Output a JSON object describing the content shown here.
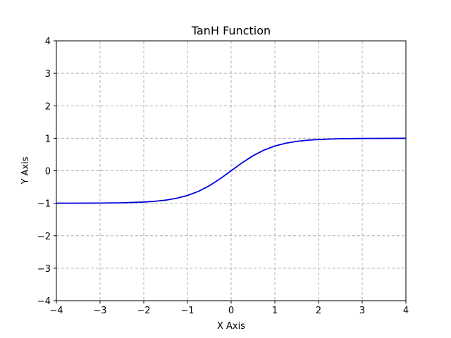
{
  "chart_data": {
    "type": "line",
    "title": "TanH Function",
    "xlabel": "X Axis",
    "ylabel": "Y Axis",
    "xlim": [
      -4,
      4
    ],
    "ylim": [
      -4,
      4
    ],
    "xticks": [
      -4,
      -3,
      -2,
      -1,
      0,
      1,
      2,
      3,
      4
    ],
    "yticks": [
      -4,
      -3,
      -2,
      -1,
      0,
      1,
      2,
      3,
      4
    ],
    "xtick_labels": [
      "−4",
      "−3",
      "−2",
      "−1",
      "0",
      "1",
      "2",
      "3",
      "4"
    ],
    "ytick_labels": [
      "−4",
      "−3",
      "−2",
      "−1",
      "0",
      "1",
      "2",
      "3",
      "4"
    ],
    "grid": true,
    "grid_style": "dashed",
    "series": [
      {
        "color": "#0000dd",
        "x": [
          -4.0,
          -3.5,
          -3.0,
          -2.5,
          -2.0,
          -1.75,
          -1.5,
          -1.25,
          -1.0,
          -0.75,
          -0.5,
          -0.25,
          0.0,
          0.25,
          0.5,
          0.75,
          1.0,
          1.25,
          1.5,
          1.75,
          2.0,
          2.5,
          3.0,
          3.5,
          4.0
        ],
        "y": [
          -0.999,
          -0.998,
          -0.995,
          -0.987,
          -0.964,
          -0.941,
          -0.905,
          -0.848,
          -0.762,
          -0.635,
          -0.462,
          -0.245,
          0.0,
          0.245,
          0.462,
          0.635,
          0.762,
          0.848,
          0.905,
          0.941,
          0.964,
          0.987,
          0.995,
          0.998,
          0.999
        ]
      }
    ]
  }
}
